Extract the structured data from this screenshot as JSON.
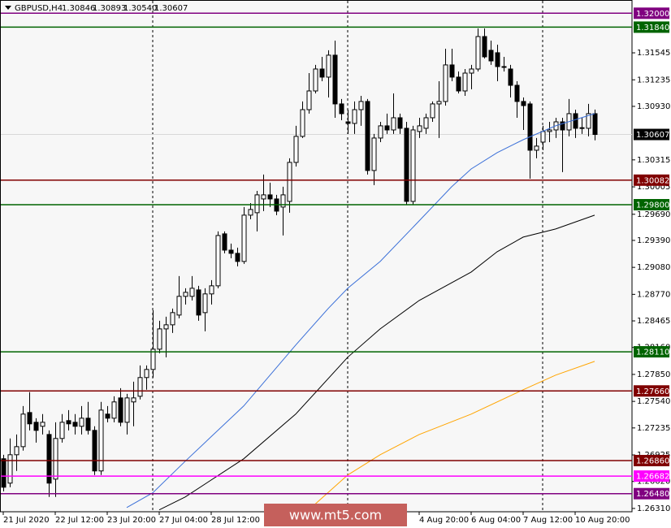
{
  "chart_data": {
    "type": "candlestick",
    "symbol": "GBPUSD,H4",
    "ohlc_labels": [
      "1.30846",
      "1.30893",
      "1.30540",
      "1.30607"
    ],
    "watermark": "www.mt5.com",
    "categories": [
      "21 Jul 2020",
      null,
      null,
      null,
      null,
      null,
      null,
      null,
      "22 Jul 12:00",
      null,
      null,
      null,
      null,
      null,
      null,
      null,
      "23 Jul 20:00",
      null,
      null,
      null,
      null,
      null,
      null,
      null,
      "27 Jul 04:00",
      null,
      null,
      null,
      null,
      null,
      null,
      null,
      "28 Jul 12:00",
      null,
      null,
      null,
      null,
      null,
      null,
      null,
      null,
      null,
      null,
      null,
      null,
      null,
      null,
      null,
      null,
      null,
      null,
      null,
      null,
      null,
      null,
      null,
      null,
      null,
      null,
      null,
      null,
      null,
      null,
      null,
      "4 Aug 20:00",
      null,
      null,
      null,
      null,
      null,
      null,
      null,
      "6 Aug 04:00",
      null,
      null,
      null,
      null,
      null,
      null,
      null,
      "7 Aug 12:00",
      null,
      null,
      null,
      null,
      null,
      null,
      null,
      "10 Aug 20:00",
      null,
      null,
      null
    ],
    "open": [
      1.26881,
      1.26601,
      1.26927,
      1.2702,
      1.27412,
      1.273,
      1.27254,
      1.2716,
      1.26647,
      1.27114,
      1.27319,
      1.273,
      1.27254,
      1.27347,
      1.27207,
      1.26741,
      1.27394,
      1.27347,
      1.2758,
      1.273,
      1.27534,
      1.27599,
      1.27814,
      1.27907,
      1.2814,
      1.28373,
      1.2842,
      1.28532,
      1.28747,
      1.28747,
      1.28821,
      1.2856,
      1.28775,
      1.28868,
      1.29465,
      1.29278,
      1.29241,
      1.29148,
      1.2968,
      1.29708,
      1.29866,
      1.29913,
      1.29866,
      1.29773,
      1.29838,
      1.30286,
      1.30585,
      1.30892,
      1.31107,
      1.31359,
      1.31266,
      1.31518,
      1.30958,
      1.30752,
      1.30734,
      1.30892,
      1.30986,
      1.30193,
      1.30566,
      1.30706,
      1.30659,
      1.30799,
      1.30678,
      1.29838,
      1.30641,
      1.30678,
      1.30799,
      1.30958,
      1.30986,
      1.31406,
      1.31266,
      1.31107,
      1.31312,
      1.31359,
      1.31732,
      1.31574,
      1.31546,
      1.31387,
      1.31359,
      1.31172,
      1.30986,
      1.30958,
      1.30426,
      1.30519,
      1.30641,
      1.30659,
      1.30752,
      1.30659,
      1.30846,
      1.30678,
      1.30678,
      1.30846
    ],
    "high": [
      1.26927,
      1.27114,
      1.2716,
      1.27487,
      1.27646,
      1.27347,
      1.27394,
      1.27207,
      1.273,
      1.27394,
      1.2744,
      1.27394,
      1.27487,
      1.27534,
      1.27254,
      1.27534,
      1.27487,
      1.27599,
      1.27692,
      1.27627,
      1.27767,
      1.27953,
      1.27953,
      1.28588,
      1.28467,
      1.28513,
      1.28607,
      1.2898,
      1.2884,
      1.2898,
      1.28868,
      1.2884,
      1.28933,
      1.29493,
      1.29493,
      1.29353,
      1.29306,
      1.29773,
      1.29819,
      1.29959,
      1.30146,
      1.30053,
      1.29913,
      1.30006,
      1.30333,
      1.30706,
      1.30986,
      1.31312,
      1.31406,
      1.31499,
      1.31574,
      1.31685,
      1.31014,
      1.30892,
      1.30986,
      1.31051,
      1.31014,
      1.30613,
      1.30752,
      1.30846,
      1.31079,
      1.30846,
      1.30752,
      1.30706,
      1.30799,
      1.30846,
      1.30986,
      1.31219,
      1.31592,
      1.31592,
      1.31331,
      1.31359,
      1.31406,
      1.31825,
      1.31825,
      1.31685,
      1.31639,
      1.31499,
      1.31406,
      1.31219,
      1.31032,
      1.30986,
      1.30566,
      1.30706,
      1.30752,
      1.30799,
      1.30799,
      1.31014,
      1.30892,
      1.30799,
      1.30958,
      1.30893
    ],
    "low": [
      1.26507,
      1.26554,
      1.26741,
      1.26974,
      1.27207,
      1.27067,
      1.2716,
      1.26442,
      1.26442,
      1.27067,
      1.27207,
      1.2716,
      1.2716,
      1.2716,
      1.26694,
      1.26694,
      1.273,
      1.273,
      1.27254,
      1.2716,
      1.27254,
      1.27562,
      1.27674,
      1.27814,
      1.28093,
      1.28047,
      1.28327,
      1.28495,
      1.28653,
      1.287,
      1.28467,
      1.28345,
      1.28653,
      1.2884,
      1.29241,
      1.29185,
      1.29092,
      1.2912,
      1.29633,
      1.29493,
      1.29726,
      1.29773,
      1.2968,
      1.29446,
      1.29708,
      1.30239,
      1.30566,
      1.30846,
      1.31079,
      1.31219,
      1.31032,
      1.30799,
      1.30771,
      1.30613,
      1.30613,
      1.30706,
      1.30146,
      1.30025,
      1.30519,
      1.30613,
      1.30613,
      1.30613,
      1.29801,
      1.29801,
      1.30566,
      1.30613,
      1.30752,
      1.30566,
      1.30939,
      1.31219,
      1.31079,
      1.31051,
      1.31126,
      1.31331,
      1.3148,
      1.31406,
      1.31219,
      1.31331,
      1.31032,
      1.30799,
      1.30659,
      1.30099,
      1.30333,
      1.30426,
      1.30519,
      1.30566,
      1.30174,
      1.30585,
      1.30566,
      1.30613,
      1.30585,
      1.3054
    ],
    "close": [
      1.26554,
      1.26927,
      1.2702,
      1.27394,
      1.27282,
      1.27207,
      1.273,
      1.26601,
      1.27114,
      1.273,
      1.27282,
      1.27254,
      1.27347,
      1.27207,
      1.26741,
      1.2744,
      1.27347,
      1.27534,
      1.273,
      1.2758,
      1.2758,
      1.27814,
      1.27907,
      1.2814,
      1.28373,
      1.2842,
      1.2856,
      1.28747,
      1.28793,
      1.2884,
      1.28532,
      1.28775,
      1.28868,
      1.29446,
      1.29278,
      1.29241,
      1.29148,
      1.2968,
      1.29745,
      1.29913,
      1.29913,
      1.29866,
      1.29726,
      1.29913,
      1.30286,
      1.30585,
      1.30892,
      1.31107,
      1.31359,
      1.31266,
      1.31518,
      1.30958,
      1.30846,
      1.30734,
      1.30892,
      1.30986,
      1.30193,
      1.30566,
      1.30706,
      1.30659,
      1.30799,
      1.30678,
      1.29838,
      1.30659,
      1.30706,
      1.30799,
      1.30958,
      1.30986,
      1.31406,
      1.31266,
      1.31107,
      1.31312,
      1.31359,
      1.31732,
      1.31499,
      1.31452,
      1.31387,
      1.3138,
      1.31172,
      1.30986,
      1.30939,
      1.30426,
      1.30473,
      1.30641,
      1.30659,
      1.30752,
      1.30659,
      1.30846,
      1.30678,
      1.30685,
      1.30846,
      1.30607
    ],
    "series": [
      {
        "color": "#3a6fd8",
        "x": [
          19,
          23,
          28,
          37,
          45,
          50,
          53,
          58,
          64,
          69,
          72,
          76,
          80,
          85,
          91
        ],
        "values": [
          1.26321,
          1.26489,
          1.26853,
          1.27487,
          1.28187,
          1.28607,
          1.2884,
          1.29148,
          1.29614,
          1.30006,
          1.30211,
          1.30398,
          1.30547,
          1.30706,
          1.30846
        ]
      },
      {
        "color": "#000000",
        "x": [
          24,
          28,
          37,
          45,
          53,
          58,
          64,
          72,
          76,
          80,
          85,
          91
        ],
        "values": [
          1.26293,
          1.26442,
          1.26881,
          1.27394,
          1.28047,
          1.28373,
          1.287,
          1.29026,
          1.2926,
          1.29428,
          1.29521,
          1.2968
        ]
      },
      {
        "color": "#ffa500",
        "x": [
          47,
          53,
          58,
          64,
          72,
          80,
          85,
          91
        ],
        "values": [
          1.26293,
          1.26694,
          1.26927,
          1.2716,
          1.27394,
          1.27674,
          1.27842,
          1.28
        ]
      }
    ],
    "ylim": [
      1.26272,
      1.32152
    ],
    "yticks": [
      {
        "value": 1.31545,
        "label": "1.31545"
      },
      {
        "value": 1.31235,
        "label": "1.31235"
      },
      {
        "value": 1.3093,
        "label": "1.30930"
      },
      {
        "value": 1.30315,
        "label": "1.30315"
      },
      {
        "value": 1.30005,
        "label": "1.30005"
      },
      {
        "value": 1.2969,
        "label": "1.29690"
      },
      {
        "value": 1.2939,
        "label": "1.29390"
      },
      {
        "value": 1.2908,
        "label": "1.29080"
      },
      {
        "value": 1.2877,
        "label": "1.28770"
      },
      {
        "value": 1.28465,
        "label": "1.28465"
      },
      {
        "value": 1.2816,
        "label": "1.28160"
      },
      {
        "value": 1.2785,
        "label": "1.27850"
      },
      {
        "value": 1.2754,
        "label": "1.27540"
      },
      {
        "value": 1.27235,
        "label": "1.27235"
      },
      {
        "value": 1.26925,
        "label": "1.26925"
      },
      {
        "value": 1.2662,
        "label": "1.26620"
      },
      {
        "value": 1.2631,
        "label": "1.26310"
      }
    ],
    "levels": [
      {
        "value": 1.32,
        "label": "1.32000",
        "color": "#800080"
      },
      {
        "value": 1.3184,
        "label": "1.31840",
        "color": "#006400"
      },
      {
        "value": 1.30082,
        "label": "1.30082",
        "color": "#800000"
      },
      {
        "value": 1.298,
        "label": "1.29800",
        "color": "#006400"
      },
      {
        "value": 1.2811,
        "label": "1.28110",
        "color": "#006400"
      },
      {
        "value": 1.2766,
        "label": "1.27660",
        "color": "#800000"
      },
      {
        "value": 1.2686,
        "label": "1.26860",
        "color": "#800000"
      },
      {
        "value": 1.26682,
        "label": "1.26682",
        "color": "#ff00ff"
      },
      {
        "value": 1.2648,
        "label": "1.26480",
        "color": "#800080"
      }
    ],
    "current_price": {
      "value": 1.30607,
      "label": "1.30607"
    }
  }
}
